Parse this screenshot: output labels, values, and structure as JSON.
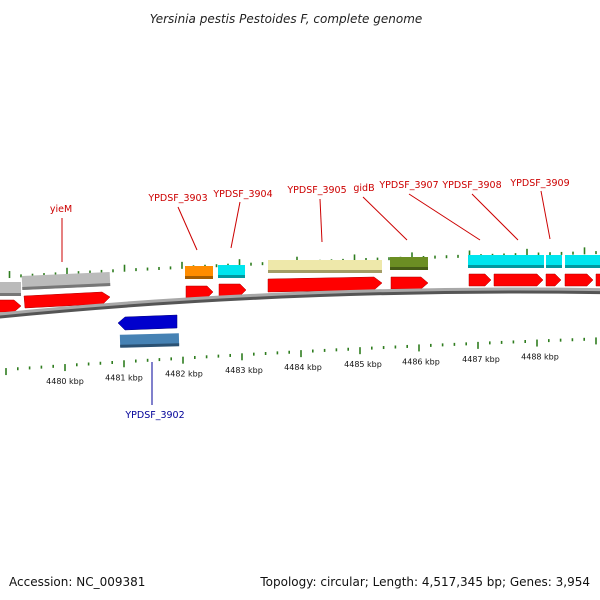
{
  "title": "Yersinia pestis Pestoides F, complete genome",
  "accession": "Accession: NC_009381",
  "summary": "Topology: circular; Length: 4,517,345 bp; Genes: 3,954",
  "colors": {
    "label_forward": "#cc0000",
    "label_reverse": "#000099",
    "cds": "#ff0000",
    "tick": "#2f7d1f",
    "backbone": "#888888",
    "gene_grey": "#bbbbbb",
    "gene_orange": "#ff8c00",
    "gene_cyan": "#00e5ee",
    "gene_khaki": "#eee8aa",
    "gene_olive": "#6b8e23",
    "gene_blue": "#0000cd",
    "gene_steelblue": "#4682b4"
  },
  "scale": {
    "ticks": [
      {
        "label": "4480 kbp"
      },
      {
        "label": "4481 kbp"
      },
      {
        "label": "4482 kbp"
      },
      {
        "label": "4483 kbp"
      },
      {
        "label": "4484 kbp"
      },
      {
        "label": "4485 kbp"
      },
      {
        "label": "4486 kbp"
      },
      {
        "label": "4487 kbp"
      },
      {
        "label": "4488 kbp"
      }
    ]
  },
  "gene_labels": [
    {
      "text": "yieM",
      "strand": "forward"
    },
    {
      "text": "YPDSF_3903",
      "strand": "forward"
    },
    {
      "text": "YPDSF_3904",
      "strand": "forward"
    },
    {
      "text": "YPDSF_3905",
      "strand": "forward"
    },
    {
      "text": "gidB",
      "strand": "forward"
    },
    {
      "text": "YPDSF_3907",
      "strand": "forward"
    },
    {
      "text": "YPDSF_3908",
      "strand": "forward"
    },
    {
      "text": "YPDSF_3909",
      "strand": "forward"
    },
    {
      "text": "YPDSF_3902",
      "strand": "reverse"
    }
  ]
}
